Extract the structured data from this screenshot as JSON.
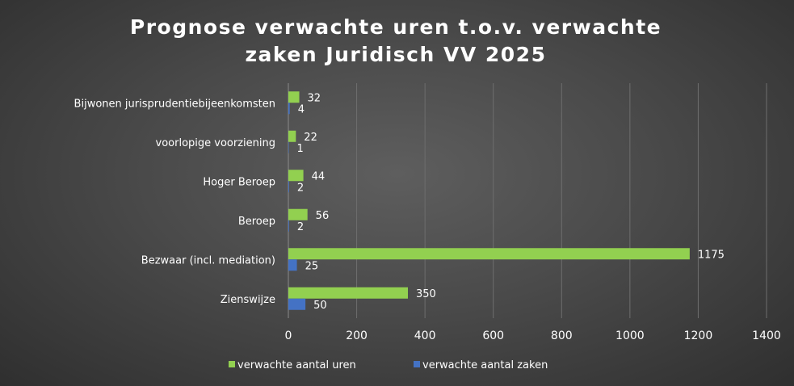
{
  "chart_data": {
    "type": "bar",
    "orientation": "horizontal",
    "title_lines": [
      "Prognose verwachte uren t.o.v. verwachte",
      "zaken Juridisch VV 2025"
    ],
    "categories": [
      "Zienswijze",
      "Bezwaar (incl. mediation)",
      "Beroep",
      "Hoger Beroep",
      "voorlopige voorziening",
      "Bijwonen jurisprudentiebijeenkomsten"
    ],
    "series": [
      {
        "name": "verwachte aantal uren",
        "color": "#92d050",
        "values": [
          350,
          1175,
          56,
          44,
          22,
          32
        ]
      },
      {
        "name": "verwachte aantal zaken",
        "color": "#4472c4",
        "values": [
          50,
          25,
          2,
          2,
          1,
          4
        ]
      }
    ],
    "xlim": [
      0,
      1400
    ],
    "xticks": [
      0,
      200,
      400,
      600,
      800,
      1000,
      1200,
      1400
    ],
    "grid": true,
    "legend_position": "bottom"
  }
}
